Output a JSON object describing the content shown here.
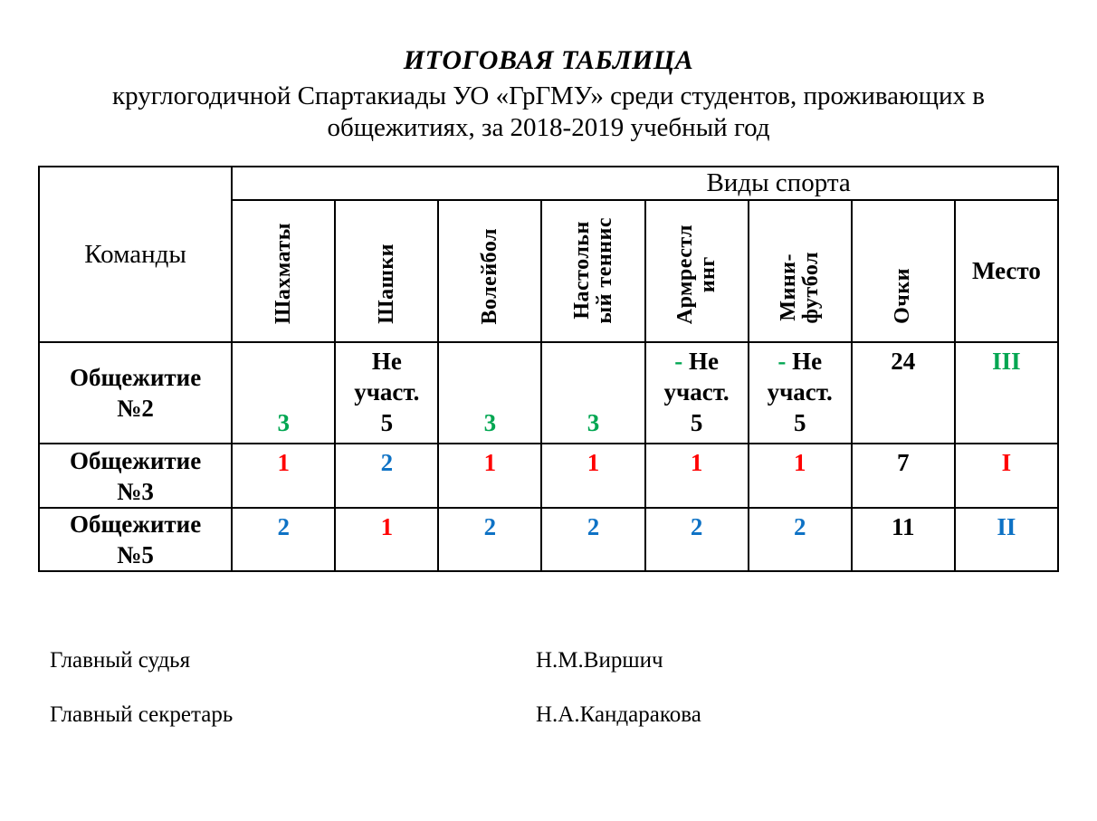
{
  "title": "ИТОГОВАЯ ТАБЛИЦА",
  "subtitle": "круглогодичной Спартакиады УО «ГрГМУ» среди студентов, проживающих в\nобщежитиях, за 2018-2019 учебный год",
  "colors": {
    "black": "#000000",
    "green": "#00A651",
    "red": "#FF0000",
    "blue": "#0E72C5"
  },
  "table": {
    "teams_header": "Команды",
    "sports_group_header": "Виды спорта",
    "columns": [
      {
        "label": "Шахматы",
        "vertical": true
      },
      {
        "label": "Шашки",
        "vertical": true
      },
      {
        "label": "Волейбол",
        "vertical": true
      },
      {
        "label": "Настольн\nый теннис",
        "vertical": true
      },
      {
        "label": "Армрестл\nинг",
        "vertical": true
      },
      {
        "label": "Мини-\nфутбол",
        "vertical": true
      },
      {
        "label": "Очки",
        "vertical": true
      },
      {
        "label": "Место",
        "vertical": false
      }
    ],
    "rows": [
      {
        "team": "Общежитие\n№2",
        "cells": [
          {
            "valign": "bottom",
            "lines": [
              [
                {
                  "t": "3",
                  "c": "green"
                }
              ]
            ]
          },
          {
            "valign": "top",
            "lines": [
              [
                {
                  "t": "Не",
                  "c": "black"
                }
              ],
              [
                {
                  "t": "участ.",
                  "c": "black"
                }
              ],
              [
                {
                  "t": "5",
                  "c": "black"
                }
              ]
            ]
          },
          {
            "valign": "bottom",
            "lines": [
              [
                {
                  "t": "3",
                  "c": "green"
                }
              ]
            ]
          },
          {
            "valign": "bottom",
            "lines": [
              [
                {
                  "t": "3",
                  "c": "green"
                }
              ]
            ]
          },
          {
            "valign": "top",
            "lines": [
              [
                {
                  "t": "- ",
                  "c": "green"
                },
                {
                  "t": "Не",
                  "c": "black"
                }
              ],
              [
                {
                  "t": "участ.",
                  "c": "black"
                }
              ],
              [
                {
                  "t": "5",
                  "c": "black"
                }
              ]
            ]
          },
          {
            "valign": "top",
            "lines": [
              [
                {
                  "t": "- ",
                  "c": "green"
                },
                {
                  "t": "Не",
                  "c": "black"
                }
              ],
              [
                {
                  "t": "участ.",
                  "c": "black"
                }
              ],
              [
                {
                  "t": "5",
                  "c": "black"
                }
              ]
            ]
          },
          {
            "valign": "top",
            "lines": [
              [
                {
                  "t": "24",
                  "c": "black"
                }
              ]
            ]
          },
          {
            "valign": "top",
            "lines": [
              [
                {
                  "t": "III",
                  "c": "green"
                }
              ]
            ]
          }
        ]
      },
      {
        "team": "Общежитие\n№3",
        "cells": [
          {
            "valign": "top",
            "lines": [
              [
                {
                  "t": "1",
                  "c": "red"
                }
              ]
            ]
          },
          {
            "valign": "top",
            "lines": [
              [
                {
                  "t": "2",
                  "c": "blue"
                }
              ]
            ]
          },
          {
            "valign": "top",
            "lines": [
              [
                {
                  "t": "1",
                  "c": "red"
                }
              ]
            ]
          },
          {
            "valign": "top",
            "lines": [
              [
                {
                  "t": "1",
                  "c": "red"
                }
              ]
            ]
          },
          {
            "valign": "top",
            "lines": [
              [
                {
                  "t": "1",
                  "c": "red"
                }
              ]
            ]
          },
          {
            "valign": "top",
            "lines": [
              [
                {
                  "t": "1",
                  "c": "red"
                }
              ]
            ]
          },
          {
            "valign": "top",
            "lines": [
              [
                {
                  "t": "7",
                  "c": "black"
                }
              ]
            ]
          },
          {
            "valign": "top",
            "lines": [
              [
                {
                  "t": "I",
                  "c": "red"
                }
              ]
            ]
          }
        ]
      },
      {
        "team": "Общежитие\n№5",
        "cells": [
          {
            "valign": "top",
            "lines": [
              [
                {
                  "t": "2",
                  "c": "blue"
                }
              ]
            ]
          },
          {
            "valign": "top",
            "lines": [
              [
                {
                  "t": "1",
                  "c": "red"
                }
              ]
            ]
          },
          {
            "valign": "top",
            "lines": [
              [
                {
                  "t": "2",
                  "c": "blue"
                }
              ]
            ]
          },
          {
            "valign": "top",
            "lines": [
              [
                {
                  "t": "2",
                  "c": "blue"
                }
              ]
            ]
          },
          {
            "valign": "top",
            "lines": [
              [
                {
                  "t": "2",
                  "c": "blue"
                }
              ]
            ]
          },
          {
            "valign": "top",
            "lines": [
              [
                {
                  "t": "2",
                  "c": "blue"
                }
              ]
            ]
          },
          {
            "valign": "top",
            "lines": [
              [
                {
                  "t": "11",
                  "c": "black"
                }
              ]
            ]
          },
          {
            "valign": "top",
            "lines": [
              [
                {
                  "t": "II",
                  "c": "blue"
                }
              ]
            ]
          }
        ]
      }
    ]
  },
  "footer": {
    "officials": [
      {
        "label": "Главный судья",
        "name": "Н.М.Виршич"
      },
      {
        "label": "Главный секретарь",
        "name": "Н.А.Кандаракова"
      }
    ]
  }
}
